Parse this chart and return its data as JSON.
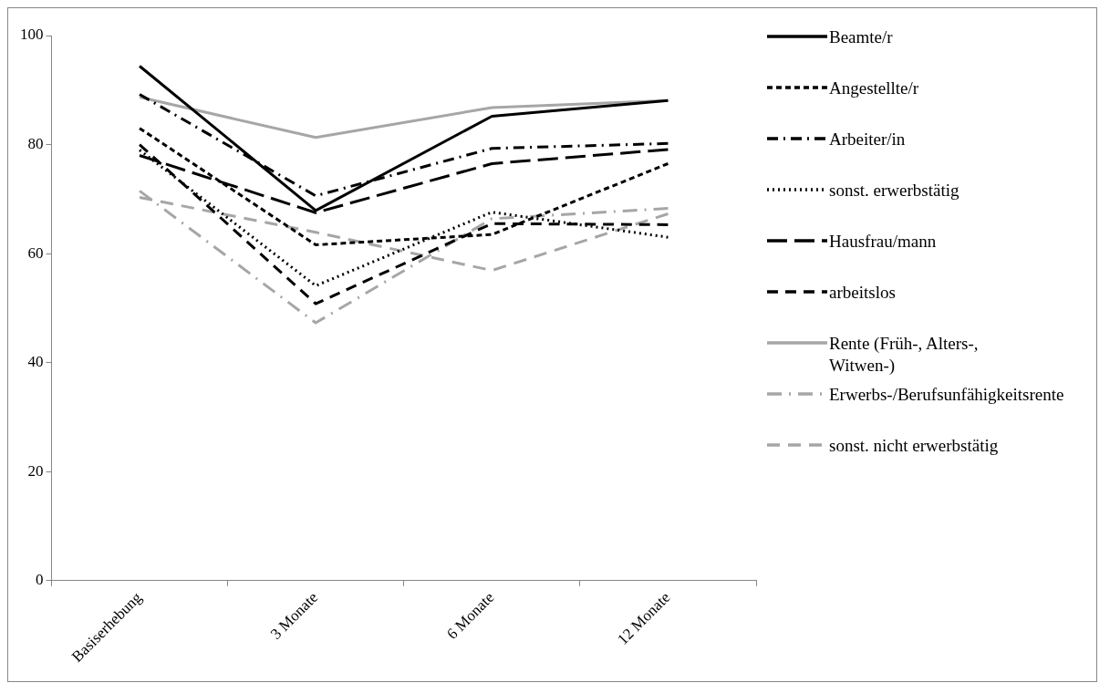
{
  "chart_data": {
    "type": "line",
    "categories": [
      "Basiserhebung",
      "3 Monate",
      "6 Monate",
      "12 Monate"
    ],
    "ylim": [
      0,
      100
    ],
    "yticks": [
      0,
      20,
      40,
      60,
      80,
      100
    ],
    "grid": false,
    "legend": "right",
    "marker": "none",
    "series": [
      {
        "name": "Beamte/r",
        "color": "#000000",
        "line_style": "solid",
        "values": [
          94.4,
          67.9,
          85.2,
          88.1
        ]
      },
      {
        "name": "Angestellte/r",
        "color": "#000000",
        "line_style": "dashed",
        "values": [
          83,
          61.6,
          63.5,
          76.5
        ]
      },
      {
        "name": "Arbeiter/in",
        "color": "#000000",
        "line_style": "dashed",
        "values": [
          89.2,
          70.6,
          79.3,
          80.2
        ]
      },
      {
        "name": "sonst. erwerbstätig",
        "color": "#000000",
        "line_style": "dotted",
        "values": [
          79,
          54.1,
          67.6,
          63
        ]
      },
      {
        "name": "Hausfrau/mann",
        "color": "#000000",
        "line_style": "dashed",
        "values": [
          78,
          67.5,
          76.5,
          79.1
        ]
      },
      {
        "name": "arbeitslos",
        "color": "#000000",
        "line_style": "dashed",
        "values": [
          80,
          50.8,
          65.5,
          65.3
        ]
      },
      {
        "name": "Rente (Früh-, Alters-, Witwen-)",
        "color": "#a6a6a6",
        "line_style": "solid",
        "values": [
          88.7,
          81.3,
          86.8,
          88.1
        ]
      },
      {
        "name": "Erwerbs-/Berufsunfähigkeitsrente",
        "color": "#a6a6a6",
        "line_style": "dashed",
        "values": [
          71.5,
          47.3,
          66.4,
          68.3
        ]
      },
      {
        "name": "sonst. nicht erwerbstätig",
        "color": "#a6a6a6",
        "line_style": "dashed",
        "values": [
          70.3,
          63.9,
          56.9,
          67.3
        ]
      }
    ]
  }
}
